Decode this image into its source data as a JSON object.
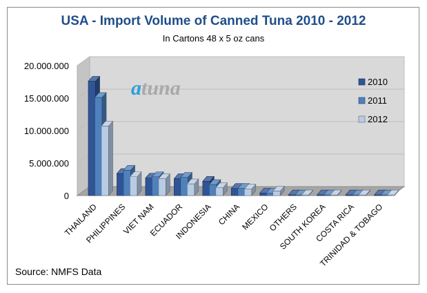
{
  "chart_data": {
    "type": "bar",
    "title": "USA - Import Volume of Canned Tuna  2010 - 2012",
    "subtitle": "In Cartons 48 x 5 oz cans",
    "watermark": "atuna",
    "categories": [
      "THAILAND",
      "PHILIPPINES",
      "VIET NAM",
      "ECUADOR",
      "INDONESIA",
      "CHINA",
      "MEXICO",
      "OTHERS",
      "SOUTH KOREA",
      "COSTA RICA",
      "TRINIDAD & TOBAGO"
    ],
    "series": [
      {
        "name": "2010",
        "color": "#2f5597",
        "values": [
          17600000,
          3400000,
          2700000,
          2600000,
          2200000,
          1100000,
          400000,
          100000,
          100000,
          100000,
          100000
        ]
      },
      {
        "name": "2011",
        "color": "#4f81bd",
        "values": [
          15100000,
          3900000,
          2900000,
          2800000,
          1700000,
          1100000,
          400000,
          100000,
          100000,
          100000,
          100000
        ]
      },
      {
        "name": "2012",
        "color": "#b8cce4",
        "values": [
          10700000,
          2900000,
          2600000,
          1800000,
          1200000,
          1000000,
          700000,
          100000,
          100000,
          100000,
          100000
        ]
      }
    ],
    "y_ticks": [
      "20.000.000",
      "15.000.000",
      "10.000.000",
      "5.000.000",
      "0"
    ],
    "ylim": [
      0,
      20000000
    ],
    "xlabel": "",
    "ylabel": "",
    "legend_position": "right"
  },
  "footer": {
    "source": "Source:  NMFS Data"
  }
}
